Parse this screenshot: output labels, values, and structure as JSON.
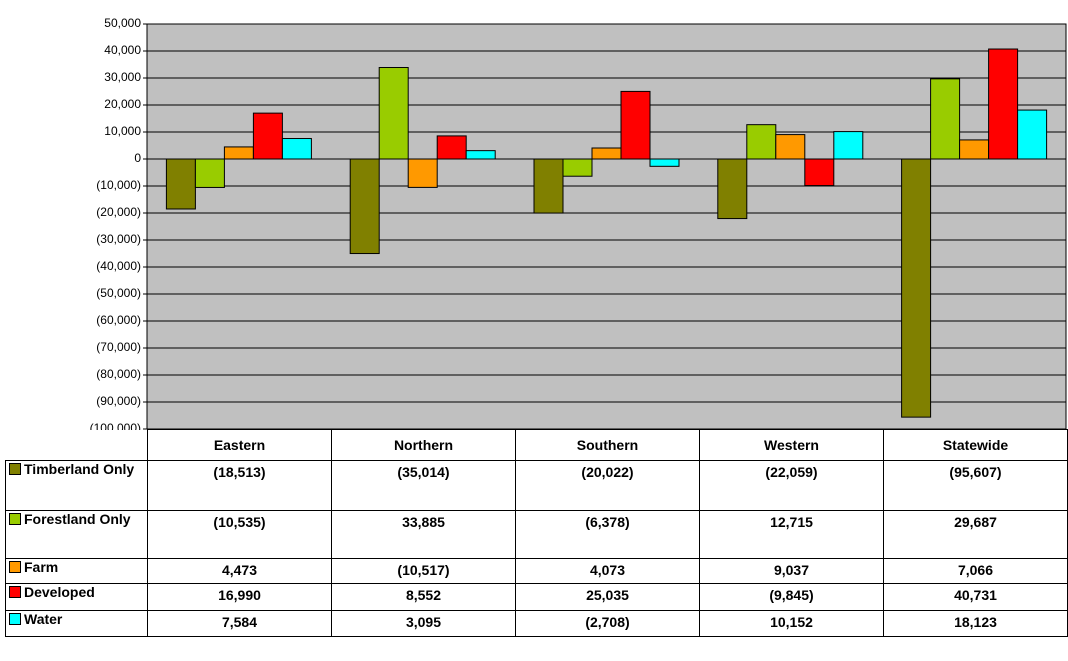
{
  "chart_data": {
    "type": "bar",
    "categories": [
      "Eastern",
      "Northern",
      "Southern",
      "Western",
      "Statewide"
    ],
    "series": [
      {
        "name": "Timberland Only",
        "color": "#808000",
        "values": [
          -18513,
          -35014,
          -20022,
          -22059,
          -95607
        ],
        "value_labels": [
          "(18,513)",
          "(35,014)",
          "(20,022)",
          "(22,059)",
          "(95,607)"
        ]
      },
      {
        "name": "Forestland Only",
        "color": "#99cc00",
        "values": [
          -10535,
          33885,
          -6378,
          12715,
          29687
        ],
        "value_labels": [
          "(10,535)",
          "33,885",
          "(6,378)",
          "12,715",
          "29,687"
        ]
      },
      {
        "name": "Farm",
        "color": "#ff9900",
        "values": [
          4473,
          -10517,
          4073,
          9037,
          7066
        ],
        "value_labels": [
          "4,473",
          "(10,517)",
          "4,073",
          "9,037",
          "7,066"
        ]
      },
      {
        "name": "Developed",
        "color": "#ff0000",
        "values": [
          16990,
          8552,
          25035,
          -9845,
          40731
        ],
        "value_labels": [
          "16,990",
          "8,552",
          "25,035",
          "(9,845)",
          "40,731"
        ]
      },
      {
        "name": "Water",
        "color": "#00ffff",
        "values": [
          7584,
          3095,
          -2708,
          10152,
          18123
        ],
        "value_labels": [
          "7,584",
          "3,095",
          "(2,708)",
          "10,152",
          "18,123"
        ]
      }
    ],
    "ylim": [
      -100000,
      50000
    ],
    "yticks": [
      {
        "value": 50000,
        "label": "50,000"
      },
      {
        "value": 40000,
        "label": "40,000"
      },
      {
        "value": 30000,
        "label": "30,000"
      },
      {
        "value": 20000,
        "label": "20,000"
      },
      {
        "value": 10000,
        "label": "10,000"
      },
      0,
      {
        "value": -10000,
        "label": "(10,000)"
      },
      {
        "value": -20000,
        "label": "(20,000)"
      },
      {
        "value": -30000,
        "label": "(30,000)"
      },
      {
        "value": -40000,
        "label": "(40,000)"
      },
      {
        "value": -50000,
        "label": "(50,000)"
      },
      {
        "value": -60000,
        "label": "(60,000)"
      },
      {
        "value": -70000,
        "label": "(70,000)"
      },
      {
        "value": -80000,
        "label": "(80,000)"
      },
      {
        "value": -90000,
        "label": "(90,000)"
      },
      {
        "value": -100000,
        "label": "(100,000)"
      }
    ],
    "grid": true,
    "background": "#c0c0c0"
  }
}
